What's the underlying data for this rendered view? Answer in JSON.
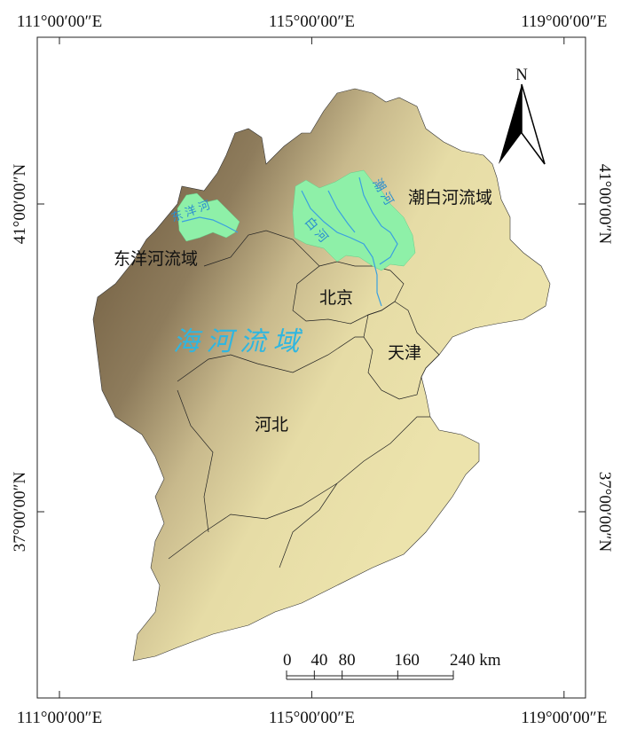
{
  "lon_ticks": [
    {
      "value": 111,
      "label": "111°00′00″E"
    },
    {
      "value": 115,
      "label": "115°00′00″E"
    },
    {
      "value": 119,
      "label": "119°00′00″E"
    }
  ],
  "lat_ticks": [
    {
      "value": 41,
      "label": "41°00′00″N"
    },
    {
      "value": 37,
      "label": "37°00′00″N"
    }
  ],
  "north_label": "N",
  "regions": {
    "chaobai": "潮白河流域",
    "dongyang": "东洋河流域",
    "beijing": "北京",
    "tianjin": "天津",
    "hebei": "河北",
    "haihe": "海 河 流 域"
  },
  "rivers": {
    "dongyang": "东 洋 河",
    "bai": "白 河",
    "chao": "潮 河"
  },
  "scale_bar": {
    "ticks": [
      {
        "value": 0,
        "label": "0"
      },
      {
        "value": 40,
        "label": "40"
      },
      {
        "value": 80,
        "label": "80"
      },
      {
        "value": 160,
        "label": "160"
      },
      {
        "value": 240,
        "label": "240 km"
      }
    ]
  }
}
